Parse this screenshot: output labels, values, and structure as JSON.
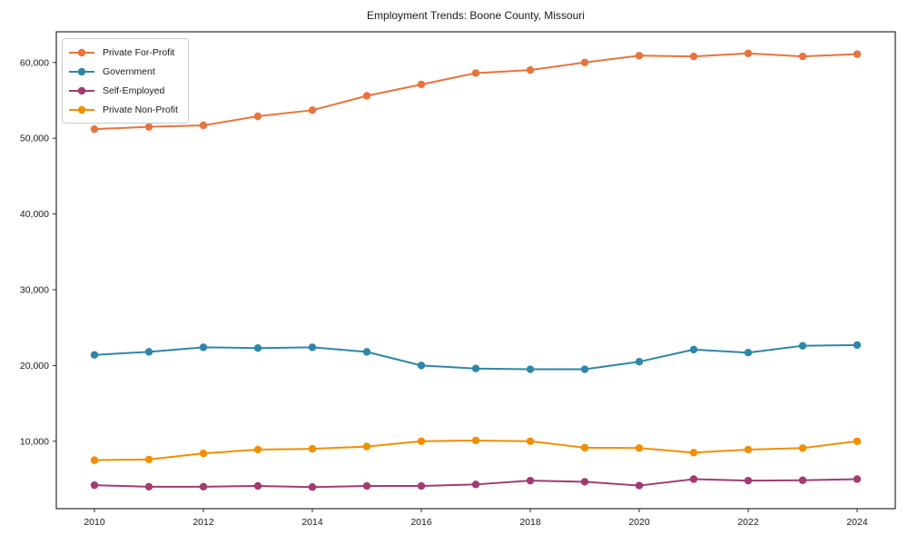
{
  "chart_data": {
    "type": "line",
    "title": "Employment Trends: Boone County, Missouri",
    "xlabel": "",
    "ylabel": "",
    "x": [
      2010,
      2011,
      2012,
      2013,
      2014,
      2015,
      2016,
      2017,
      2018,
      2019,
      2020,
      2021,
      2022,
      2023,
      2024
    ],
    "series": [
      {
        "name": "Private For-Profit",
        "color": "#E8743B",
        "values": [
          51200,
          51500,
          51700,
          52900,
          53700,
          55600,
          57100,
          58600,
          59000,
          60000,
          60900,
          60800,
          61200,
          60800,
          61100
        ]
      },
      {
        "name": "Government",
        "color": "#2E86AB",
        "values": [
          21400,
          21800,
          22400,
          22300,
          22400,
          21800,
          20000,
          19600,
          19500,
          19500,
          20500,
          22100,
          21700,
          22600,
          22700
        ]
      },
      {
        "name": "Self-Employed",
        "color": "#A23B72",
        "values": [
          4200,
          4000,
          4000,
          4100,
          3950,
          4100,
          4100,
          4300,
          4800,
          4650,
          4150,
          5000,
          4800,
          4850,
          5000
        ]
      },
      {
        "name": "Private Non-Profit",
        "color": "#F18F01",
        "values": [
          7500,
          7600,
          8400,
          8900,
          9000,
          9300,
          10000,
          10100,
          10000,
          9150,
          9100,
          8500,
          8900,
          9100,
          10000
        ]
      }
    ],
    "xticks": [
      2010,
      2012,
      2014,
      2016,
      2018,
      2020,
      2022,
      2024
    ],
    "xtick_labels": [
      "2010",
      "2012",
      "2014",
      "2016",
      "2018",
      "2020",
      "2022",
      "2024"
    ],
    "yticks": [
      10000,
      20000,
      30000,
      40000,
      50000,
      60000
    ],
    "ytick_labels": [
      "10,000",
      "20,000",
      "30,000",
      "40,000",
      "50,000",
      "60,000"
    ],
    "xlim": [
      2009.3,
      2024.7
    ],
    "ylim": [
      1100,
      64050
    ],
    "grid": false,
    "legend_position": "upper left"
  }
}
